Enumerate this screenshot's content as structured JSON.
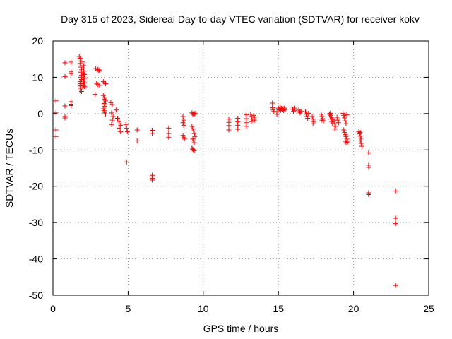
{
  "chart_data": {
    "type": "scatter",
    "title": "Day 315 of 2023, Sidereal Day-to-day VTEC variation (SDTVAR) for receiver kokv",
    "xlabel": "GPS time / hours",
    "ylabel": "SDTVAR / TECUs",
    "xlim": [
      0,
      25
    ],
    "ylim": [
      -50,
      20
    ],
    "xticks": [
      0,
      5,
      10,
      15,
      20,
      25
    ],
    "yticks": [
      -50,
      -40,
      -30,
      -20,
      -10,
      0,
      10,
      20
    ],
    "grid": true,
    "marker": "+",
    "color": "#ff0000",
    "series": [
      {
        "name": "SDTVAR",
        "points": [
          [
            0.2,
            3.5
          ],
          [
            0.2,
            0.2
          ],
          [
            0.2,
            -4.5
          ],
          [
            0.2,
            -6.3
          ],
          [
            0.8,
            14.0
          ],
          [
            0.8,
            10.2
          ],
          [
            0.8,
            2.1
          ],
          [
            0.8,
            -0.8
          ],
          [
            0.8,
            -1.2
          ],
          [
            1.2,
            14.2
          ],
          [
            1.2,
            11.5
          ],
          [
            1.2,
            11.0
          ],
          [
            1.2,
            3.3
          ],
          [
            1.2,
            2.6
          ],
          [
            1.2,
            2.2
          ],
          [
            1.75,
            15.7
          ],
          [
            1.8,
            15.2
          ],
          [
            1.85,
            14.5
          ],
          [
            1.8,
            13.8
          ],
          [
            1.85,
            12.8
          ],
          [
            1.9,
            12.2
          ],
          [
            1.85,
            11.4
          ],
          [
            1.9,
            10.6
          ],
          [
            1.85,
            10.0
          ],
          [
            1.9,
            9.4
          ],
          [
            1.8,
            8.8
          ],
          [
            1.85,
            8.2
          ],
          [
            1.8,
            7.6
          ],
          [
            1.85,
            7.0
          ],
          [
            1.8,
            6.5
          ],
          [
            1.9,
            6.1
          ],
          [
            2.0,
            14.2
          ],
          [
            2.05,
            13.2
          ],
          [
            2.0,
            12.4
          ],
          [
            2.05,
            11.7
          ],
          [
            2.0,
            11.0
          ],
          [
            2.05,
            10.3
          ],
          [
            2.0,
            9.7
          ],
          [
            2.05,
            9.0
          ],
          [
            2.0,
            8.3
          ],
          [
            2.05,
            7.7
          ],
          [
            2.0,
            7.1
          ],
          [
            2.1,
            10.8
          ],
          [
            2.1,
            9.8
          ],
          [
            2.1,
            8.5
          ],
          [
            2.1,
            7.4
          ],
          [
            2.8,
            5.3
          ],
          [
            2.85,
            12.4
          ],
          [
            2.95,
            12.0
          ],
          [
            3.0,
            12.2
          ],
          [
            3.05,
            11.7
          ],
          [
            3.1,
            12.0
          ],
          [
            2.9,
            8.3
          ],
          [
            3.0,
            8.0
          ],
          [
            3.1,
            7.8
          ],
          [
            3.35,
            8.8
          ],
          [
            3.45,
            8.5
          ],
          [
            3.5,
            8.2
          ],
          [
            3.35,
            5.0
          ],
          [
            3.4,
            4.5
          ],
          [
            3.45,
            4.0
          ],
          [
            3.5,
            3.5
          ],
          [
            3.4,
            2.8
          ],
          [
            3.45,
            2.0
          ],
          [
            3.35,
            1.3
          ],
          [
            3.4,
            0.8
          ],
          [
            3.45,
            0.2
          ],
          [
            3.5,
            -0.1
          ],
          [
            3.85,
            3.0
          ],
          [
            3.95,
            2.5
          ],
          [
            3.9,
            0.2
          ],
          [
            4.0,
            -0.8
          ],
          [
            3.95,
            -1.8
          ],
          [
            3.9,
            -3.0
          ],
          [
            4.2,
            1.0
          ],
          [
            4.3,
            -1.3
          ],
          [
            4.4,
            -2.2
          ],
          [
            4.5,
            -3.2
          ],
          [
            4.4,
            -4.0
          ],
          [
            4.5,
            -5.0
          ],
          [
            4.85,
            -3.0
          ],
          [
            4.9,
            -4.0
          ],
          [
            4.95,
            -5.0
          ],
          [
            4.9,
            -13.3
          ],
          [
            5.6,
            -4.5
          ],
          [
            5.6,
            -7.5
          ],
          [
            6.6,
            -4.6
          ],
          [
            6.6,
            -5.4
          ],
          [
            6.6,
            -17.0
          ],
          [
            6.6,
            -17.8
          ],
          [
            6.6,
            -18.3
          ],
          [
            7.7,
            -4.0
          ],
          [
            7.7,
            -5.5
          ],
          [
            7.7,
            -6.5
          ],
          [
            8.65,
            -0.8
          ],
          [
            8.7,
            -1.8
          ],
          [
            8.65,
            -2.5
          ],
          [
            8.7,
            -3.2
          ],
          [
            8.65,
            -6.0
          ],
          [
            8.7,
            -6.5
          ],
          [
            8.75,
            -7.0
          ],
          [
            9.25,
            0.2
          ],
          [
            9.3,
            -0.1
          ],
          [
            9.35,
            0.0
          ],
          [
            9.4,
            -0.2
          ],
          [
            9.45,
            0.1
          ],
          [
            9.25,
            -3.5
          ],
          [
            9.3,
            -4.2
          ],
          [
            9.35,
            -4.8
          ],
          [
            9.4,
            -5.5
          ],
          [
            9.45,
            -6.3
          ],
          [
            9.3,
            -7.0
          ],
          [
            9.35,
            -7.5
          ],
          [
            9.4,
            -8.0
          ],
          [
            9.25,
            -9.5
          ],
          [
            9.3,
            -9.8
          ],
          [
            9.35,
            -10.0
          ],
          [
            9.4,
            -10.2
          ],
          [
            11.7,
            -1.5
          ],
          [
            11.7,
            -2.4
          ],
          [
            11.7,
            -3.3
          ],
          [
            11.7,
            -4.5
          ],
          [
            12.3,
            -1.3
          ],
          [
            12.3,
            -2.3
          ],
          [
            12.3,
            -3.2
          ],
          [
            12.3,
            -4.3
          ],
          [
            12.85,
            -0.3
          ],
          [
            12.85,
            -1.4
          ],
          [
            12.85,
            -2.5
          ],
          [
            12.85,
            -3.5
          ],
          [
            13.15,
            -0.2
          ],
          [
            13.2,
            -0.8
          ],
          [
            13.25,
            -1.5
          ],
          [
            13.2,
            -2.2
          ],
          [
            13.35,
            -0.5
          ],
          [
            13.4,
            -1.0
          ],
          [
            13.4,
            -1.8
          ],
          [
            14.6,
            2.9
          ],
          [
            14.6,
            1.6
          ],
          [
            14.65,
            1.0
          ],
          [
            14.7,
            0.6
          ],
          [
            14.9,
            0.5
          ],
          [
            14.9,
            -0.2
          ],
          [
            15.0,
            1.5
          ],
          [
            15.05,
            1.1
          ],
          [
            15.1,
            1.8
          ],
          [
            15.15,
            0.9
          ],
          [
            15.2,
            1.4
          ],
          [
            15.25,
            1.9
          ],
          [
            15.3,
            1.2
          ],
          [
            15.35,
            0.8
          ],
          [
            15.4,
            1.5
          ],
          [
            15.45,
            1.1
          ],
          [
            15.9,
            1.8
          ],
          [
            15.95,
            1.2
          ],
          [
            16.0,
            0.6
          ],
          [
            16.05,
            1.5
          ],
          [
            16.1,
            0.9
          ],
          [
            16.35,
            1.0
          ],
          [
            16.4,
            0.5
          ],
          [
            16.45,
            0.2
          ],
          [
            16.5,
            0.7
          ],
          [
            16.8,
            0.5
          ],
          [
            16.85,
            -0.2
          ],
          [
            16.9,
            -0.8
          ],
          [
            16.95,
            -1.3
          ],
          [
            17.0,
            0.1
          ],
          [
            17.25,
            -0.8
          ],
          [
            17.3,
            -1.5
          ],
          [
            17.35,
            -2.2
          ],
          [
            17.3,
            -2.8
          ],
          [
            17.85,
            -0.2
          ],
          [
            17.9,
            -0.8
          ],
          [
            17.95,
            -1.4
          ],
          [
            18.0,
            -2.0
          ],
          [
            17.9,
            -1.8
          ],
          [
            18.4,
            -0.2
          ],
          [
            18.45,
            -0.9
          ],
          [
            18.5,
            -1.5
          ],
          [
            18.55,
            -2.2
          ],
          [
            18.6,
            -2.8
          ],
          [
            18.45,
            0.1
          ],
          [
            18.5,
            -0.5
          ],
          [
            18.55,
            -1.0
          ],
          [
            18.6,
            -1.6
          ],
          [
            18.7,
            -2.0
          ],
          [
            18.75,
            -2.8
          ],
          [
            18.8,
            -3.5
          ],
          [
            18.75,
            -4.2
          ],
          [
            18.9,
            -1.0
          ],
          [
            18.95,
            -1.8
          ],
          [
            19.0,
            -2.5
          ],
          [
            19.3,
            0.1
          ],
          [
            19.35,
            -0.5
          ],
          [
            19.4,
            -1.2
          ],
          [
            19.45,
            -2.0
          ],
          [
            19.5,
            -2.8
          ],
          [
            19.35,
            -4.5
          ],
          [
            19.4,
            -5.2
          ],
          [
            19.45,
            -5.8
          ],
          [
            19.5,
            -6.3
          ],
          [
            19.55,
            -7.0
          ],
          [
            19.45,
            -7.6
          ],
          [
            19.5,
            -8.0
          ],
          [
            19.6,
            -7.8
          ],
          [
            19.55,
            -0.3
          ],
          [
            20.35,
            -5.0
          ],
          [
            20.4,
            -5.6
          ],
          [
            20.45,
            -6.2
          ],
          [
            20.5,
            -6.8
          ],
          [
            20.45,
            -7.5
          ],
          [
            20.5,
            -8.2
          ],
          [
            20.55,
            -9.0
          ],
          [
            20.45,
            -5.2
          ],
          [
            21.0,
            -10.8
          ],
          [
            21.0,
            -14.2
          ],
          [
            21.0,
            -14.8
          ],
          [
            21.0,
            -21.8
          ],
          [
            21.0,
            -22.3
          ],
          [
            22.8,
            -21.3
          ],
          [
            22.8,
            -28.8
          ],
          [
            22.8,
            -30.3
          ],
          [
            22.8,
            -47.3
          ]
        ]
      }
    ]
  }
}
